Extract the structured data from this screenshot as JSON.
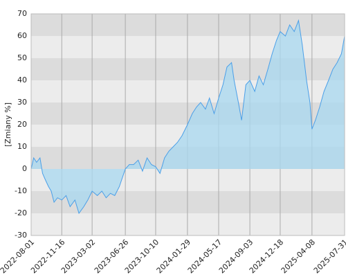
{
  "chart_data": {
    "type": "area",
    "y_label": "[Zmiany %]",
    "color": "#4a9fe8",
    "fill_color": "#a8d8f0",
    "x": [
      "2022-08-01",
      "2022-08-10",
      "2022-08-20",
      "2022-09-01",
      "2022-09-10",
      "2022-09-20",
      "2022-10-01",
      "2022-10-10",
      "2022-10-20",
      "2022-11-01",
      "2022-11-16",
      "2022-12-01",
      "2022-12-15",
      "2023-01-01",
      "2023-01-15",
      "2023-02-01",
      "2023-02-15",
      "2023-03-02",
      "2023-03-20",
      "2023-04-05",
      "2023-04-20",
      "2023-05-05",
      "2023-05-20",
      "2023-06-05",
      "2023-06-26",
      "2023-07-10",
      "2023-07-25",
      "2023-08-10",
      "2023-08-25",
      "2023-09-10",
      "2023-09-25",
      "2023-10-10",
      "2023-10-25",
      "2023-11-10",
      "2023-11-25",
      "2023-12-10",
      "2023-12-25",
      "2024-01-10",
      "2024-01-29",
      "2024-02-15",
      "2024-03-01",
      "2024-03-15",
      "2024-04-01",
      "2024-04-15",
      "2024-05-01",
      "2024-05-17",
      "2024-06-01",
      "2024-06-15",
      "2024-07-01",
      "2024-07-10",
      "2024-07-25",
      "2024-08-05",
      "2024-08-20",
      "2024-09-03",
      "2024-09-20",
      "2024-10-05",
      "2024-10-20",
      "2024-11-05",
      "2024-11-20",
      "2024-12-05",
      "2024-12-18",
      "2025-01-05",
      "2025-01-20",
      "2025-02-05",
      "2025-02-20",
      "2025-03-05",
      "2025-03-20",
      "2025-04-01",
      "2025-04-08",
      "2025-04-20",
      "2025-05-05",
      "2025-05-20",
      "2025-06-05",
      "2025-06-20",
      "2025-07-05",
      "2025-07-20",
      "2025-07-31"
    ],
    "values": [
      0,
      5,
      3,
      5,
      -2,
      -5,
      -8,
      -10,
      -15,
      -13,
      -14,
      -12,
      -17,
      -14,
      -20,
      -17,
      -14,
      -10,
      -12,
      -10,
      -13,
      -11,
      -12,
      -8,
      0,
      2,
      2,
      4,
      -1,
      5,
      2,
      1,
      -2,
      5,
      8,
      10,
      12,
      15,
      20,
      25,
      28,
      30,
      27,
      32,
      25,
      32,
      38,
      46,
      48,
      40,
      30,
      22,
      38,
      40,
      35,
      42,
      38,
      45,
      52,
      58,
      62,
      60,
      65,
      62,
      67,
      56,
      40,
      30,
      18,
      22,
      28,
      35,
      40,
      45,
      48,
      52,
      60
    ],
    "xlim": [
      "2022-08-01",
      "2025-07-31"
    ],
    "xticks": [
      "2022-08-01",
      "2022-11-16",
      "2023-03-02",
      "2023-06-26",
      "2023-10-10",
      "2024-01-29",
      "2024-05-17",
      "2024-09-03",
      "2024-12-18",
      "2025-04-08",
      "2025-07-31"
    ],
    "ylim": [
      -30,
      70
    ],
    "yticks": [
      -30,
      -20,
      -10,
      0,
      10,
      20,
      30,
      40,
      50,
      60,
      70
    ],
    "grid": true,
    "bands": true
  }
}
